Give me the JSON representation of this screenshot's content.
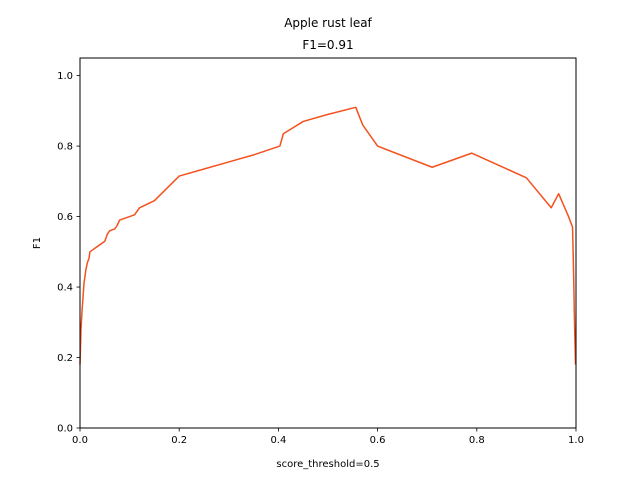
{
  "chart_data": {
    "type": "line",
    "title": "Apple rust leaf",
    "subtitle": "F1=0.91",
    "xlabel": "score_threshold=0.5",
    "ylabel": "F1",
    "xlim": [
      0.0,
      1.0
    ],
    "ylim": [
      0.0,
      1.05
    ],
    "xticks": [
      "0.0",
      "0.2",
      "0.4",
      "0.6",
      "0.8",
      "1.0"
    ],
    "xtick_values": [
      0.0,
      0.2,
      0.4,
      0.6,
      0.8,
      1.0
    ],
    "yticks": [
      "0.0",
      "0.2",
      "0.4",
      "0.6",
      "0.8",
      "1.0"
    ],
    "ytick_values": [
      0.0,
      0.2,
      0.4,
      0.6,
      0.8,
      1.0
    ],
    "grid": false,
    "series": [
      {
        "color": "#f4511e",
        "x": [
          0.0,
          0.002,
          0.004,
          0.006,
          0.008,
          0.01,
          0.012,
          0.015,
          0.018,
          0.02,
          0.025,
          0.03,
          0.04,
          0.05,
          0.055,
          0.06,
          0.07,
          0.075,
          0.08,
          0.09,
          0.11,
          0.12,
          0.15,
          0.2,
          0.25,
          0.3,
          0.35,
          0.403,
          0.41,
          0.45,
          0.5,
          0.556,
          0.57,
          0.6,
          0.71,
          0.79,
          0.9,
          0.95,
          0.965,
          0.985,
          0.993,
          0.995,
          0.997,
          0.999
        ],
        "y": [
          0.18,
          0.28,
          0.33,
          0.37,
          0.41,
          0.43,
          0.45,
          0.47,
          0.48,
          0.5,
          0.505,
          0.51,
          0.52,
          0.53,
          0.55,
          0.56,
          0.565,
          0.575,
          0.59,
          0.595,
          0.605,
          0.625,
          0.645,
          0.715,
          0.735,
          0.755,
          0.775,
          0.8,
          0.835,
          0.87,
          0.89,
          0.91,
          0.86,
          0.8,
          0.74,
          0.78,
          0.71,
          0.625,
          0.665,
          0.6,
          0.57,
          0.45,
          0.3,
          0.18
        ]
      }
    ]
  }
}
